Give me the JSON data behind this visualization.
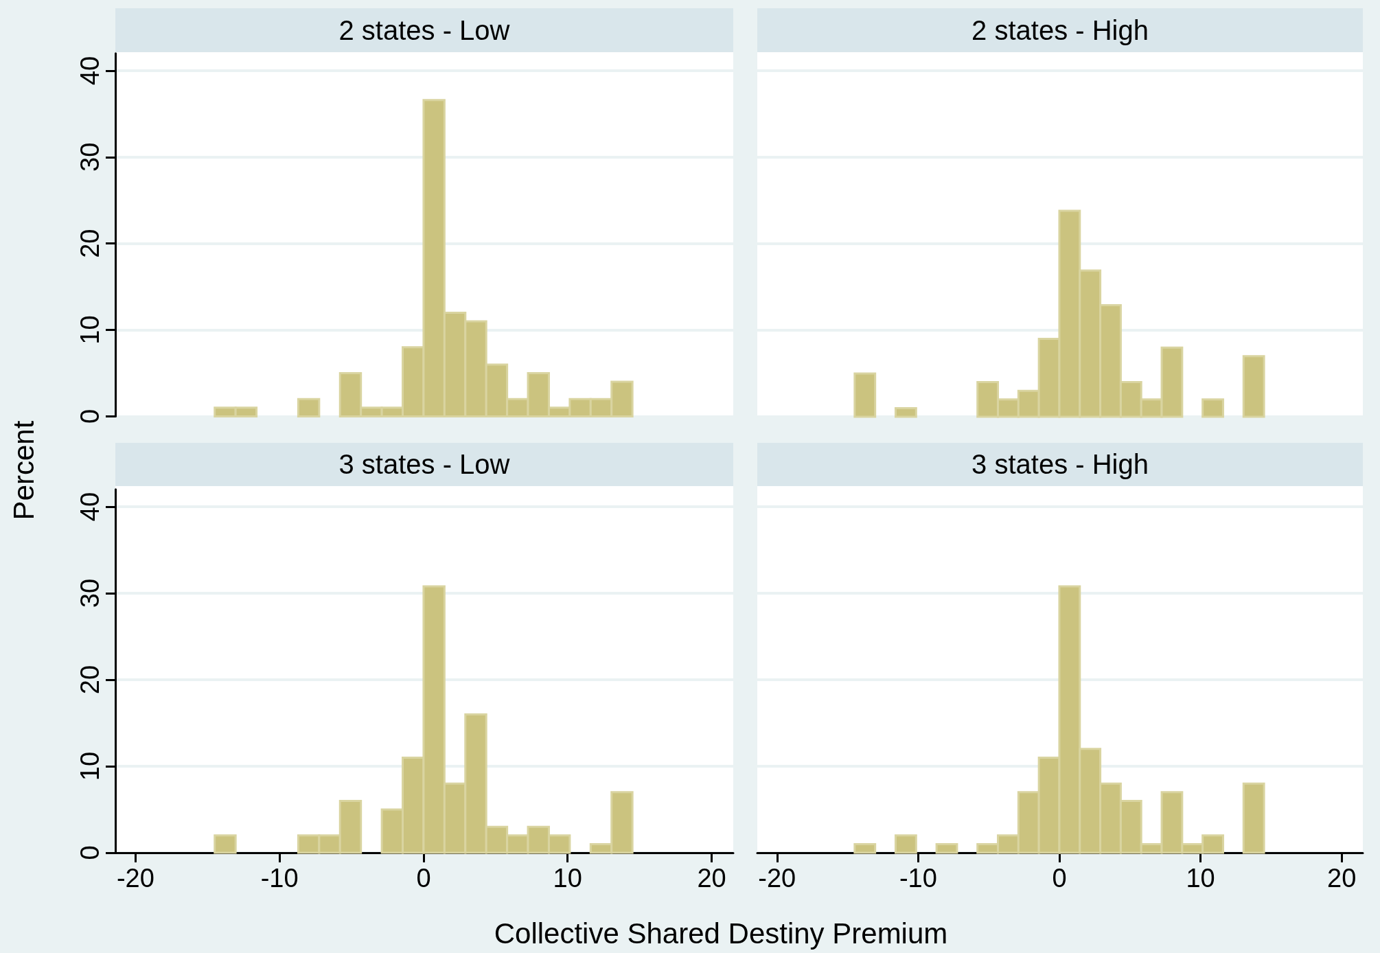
{
  "chart_data": [
    {
      "type": "histogram",
      "title": "2 states - Low",
      "ylabel": "Percent",
      "color": "#cbc37f",
      "bins": [
        -14.5,
        -13.05,
        -11.6,
        -10.15,
        -8.7,
        -7.25,
        -5.8,
        -4.35,
        -2.9,
        -1.45,
        0,
        1.45,
        2.9,
        4.35,
        5.8,
        7.25,
        8.7,
        10.15,
        11.6,
        13.05,
        14.5
      ],
      "values": [
        1,
        1,
        0,
        0,
        2,
        0,
        5,
        1,
        1,
        8,
        36.6,
        12,
        11,
        6,
        2,
        5,
        1,
        2,
        2,
        4
      ],
      "xlim": [
        -21.4,
        21.5
      ],
      "ylim": [
        0,
        42
      ],
      "xticks": [
        -20,
        -10,
        0,
        10,
        20
      ],
      "yticks": [
        0,
        10,
        20,
        30,
        40
      ],
      "grid": "y",
      "tick_labels": "y"
    },
    {
      "type": "histogram",
      "title": "2 states - High",
      "color": "#cbc37f",
      "bins": [
        -14.5,
        -13.05,
        -11.6,
        -10.15,
        -8.7,
        -7.25,
        -5.8,
        -4.35,
        -2.9,
        -1.45,
        0,
        1.45,
        2.9,
        4.35,
        5.8,
        7.25,
        8.7,
        10.15,
        11.6,
        13.05,
        14.5
      ],
      "values": [
        5,
        0,
        1,
        0,
        0,
        0,
        4,
        2,
        3,
        9,
        23.8,
        16.9,
        12.9,
        4,
        2,
        8,
        0,
        2,
        0,
        7
      ],
      "xlim": [
        -21.4,
        21.5
      ],
      "ylim": [
        0,
        40
      ],
      "xticks": [
        -20,
        -10,
        0,
        10,
        20
      ],
      "yticks": [
        0,
        10,
        20,
        30,
        40
      ],
      "grid": "y",
      "tick_labels": false
    },
    {
      "type": "histogram",
      "title": "3 states - Low",
      "xlabel": "Collective Shared Destiny Premium",
      "color": "#cbc37f",
      "bins": [
        -14.5,
        -13.05,
        -11.6,
        -10.15,
        -8.7,
        -7.25,
        -5.8,
        -4.35,
        -2.9,
        -1.45,
        0,
        1.45,
        2.9,
        4.35,
        5.8,
        7.25,
        8.7,
        10.15,
        11.6,
        13.05,
        14.5
      ],
      "values": [
        2,
        0,
        0,
        0,
        2,
        2,
        6,
        0,
        5,
        11,
        30.8,
        8,
        16,
        3,
        2,
        3,
        2,
        0,
        1,
        7
      ],
      "xlim": [
        -21.4,
        21.5
      ],
      "ylim": [
        0,
        42
      ],
      "xticks": [
        -20,
        -10,
        0,
        10,
        20
      ],
      "yticks": [
        0,
        10,
        20,
        30,
        40
      ],
      "grid": "y"
    },
    {
      "type": "histogram",
      "title": "3 states - High",
      "color": "#cbc37f",
      "bins": [
        -14.5,
        -13.05,
        -11.6,
        -10.15,
        -8.7,
        -7.25,
        -5.8,
        -4.35,
        -2.9,
        -1.45,
        0,
        1.45,
        2.9,
        4.35,
        5.8,
        7.25,
        8.7,
        10.15,
        11.6,
        13.05,
        14.5
      ],
      "values": [
        1,
        0,
        2,
        0,
        1,
        0,
        1,
        2,
        7,
        11,
        30.8,
        12,
        8,
        6,
        1,
        7,
        1,
        2,
        0,
        8
      ],
      "xlim": [
        -21.4,
        21.5
      ],
      "ylim": [
        0,
        40
      ],
      "xticks": [
        -20,
        -10,
        0,
        10,
        20
      ],
      "yticks": [
        0,
        10,
        20,
        30,
        40
      ],
      "grid": "y",
      "tick_labels": "x"
    }
  ]
}
